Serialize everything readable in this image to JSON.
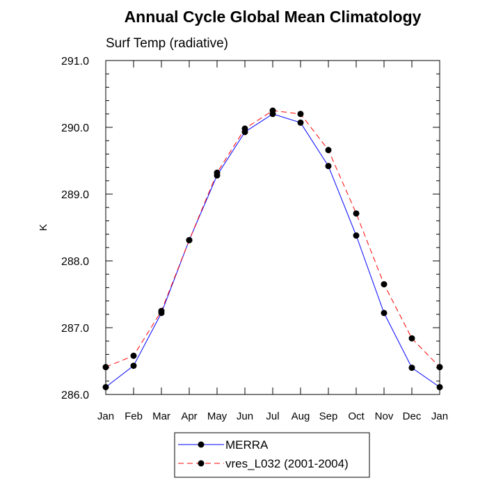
{
  "chart_data": {
    "type": "line",
    "title": "Annual Cycle Global Mean Climatology",
    "subtitle": "Surf Temp (radiative)",
    "xlabel": "",
    "ylabel": "K",
    "categories": [
      "Jan",
      "Feb",
      "Mar",
      "Apr",
      "May",
      "Jun",
      "Jul",
      "Aug",
      "Sep",
      "Oct",
      "Nov",
      "Dec",
      "Jan"
    ],
    "ylim": [
      286.0,
      291.0
    ],
    "yticks": [
      "286.0",
      "287.0",
      "288.0",
      "289.0",
      "290.0",
      "291.0"
    ],
    "grid": false,
    "legend_position": "bottom",
    "series": [
      {
        "name": "MERRA",
        "color": "#0000ff",
        "line_style": "solid",
        "marker": "filled-circle",
        "values": [
          286.11,
          286.43,
          287.22,
          288.31,
          289.28,
          289.93,
          290.2,
          290.07,
          289.42,
          288.38,
          287.22,
          286.4,
          286.11
        ]
      },
      {
        "name": "vres_L032 (2001-2004)",
        "color": "#ff0000",
        "line_style": "dashed",
        "marker": "filled-circle",
        "values": [
          286.41,
          286.58,
          287.25,
          288.31,
          289.32,
          289.98,
          290.25,
          290.2,
          289.66,
          288.71,
          287.65,
          286.84,
          286.41
        ]
      }
    ]
  }
}
